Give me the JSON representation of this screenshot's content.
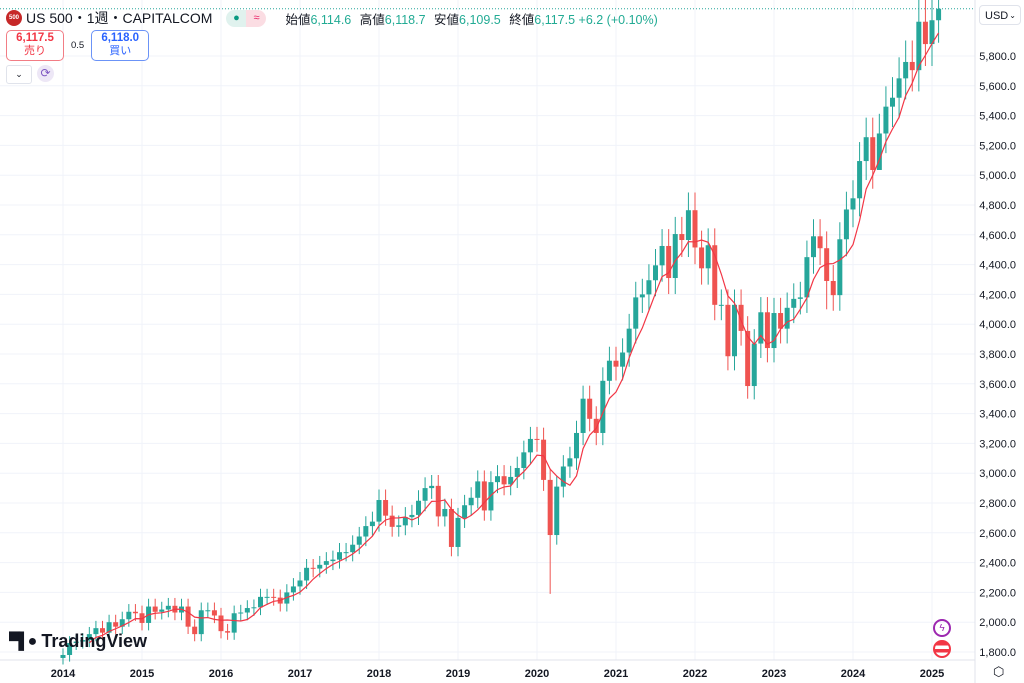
{
  "header": {
    "symbol_badge": "500",
    "title": "US 500・1週・CAPITALCOM",
    "status_open": "●",
    "status_delayed": "≈",
    "ohlc": [
      {
        "k": "始値",
        "v": "6,114.6"
      },
      {
        "k": "高値",
        "v": "6,118.7"
      },
      {
        "k": "安値",
        "v": "6,109.5"
      },
      {
        "k": "終値",
        "v": "6,117.5"
      }
    ],
    "change": "+6.2 (+0.10%)"
  },
  "trade": {
    "sell_price": "6,117.5",
    "sell_label": "売り",
    "spread": "0.5",
    "buy_price": "6,118.0",
    "buy_label": "買い"
  },
  "currency": "USD",
  "logo": "TradingView",
  "icons": {
    "events": "lightning-icon",
    "country": "us-flag-icon",
    "settings": "gear-icon"
  },
  "colors": {
    "up": "#26a69a",
    "down": "#ef5350",
    "ma": "#f23645",
    "grid": "#f0f3fa"
  },
  "chart_data": {
    "type": "candlestick",
    "interval": "monthly approximation of weekly chart",
    "start": "2014-01",
    "closes": [
      1780,
      1860,
      1870,
      1880,
      1920,
      1960,
      1930,
      2000,
      1970,
      2020,
      2070,
      2060,
      1995,
      2105,
      2070,
      2085,
      2110,
      2065,
      2105,
      1970,
      1920,
      2080,
      2080,
      2045,
      1940,
      1930,
      2060,
      2065,
      2095,
      2100,
      2170,
      2170,
      2165,
      2125,
      2200,
      2240,
      2280,
      2365,
      2360,
      2385,
      2410,
      2420,
      2470,
      2470,
      2520,
      2575,
      2645,
      2675,
      2820,
      2715,
      2640,
      2650,
      2705,
      2720,
      2815,
      2900,
      2915,
      2710,
      2760,
      2505,
      2700,
      2785,
      2835,
      2945,
      2750,
      2940,
      2980,
      2925,
      2975,
      3035,
      3140,
      3230,
      3225,
      2955,
      2585,
      2910,
      3045,
      3100,
      3270,
      3500,
      3365,
      3270,
      3620,
      3755,
      3715,
      3810,
      3970,
      4180,
      4200,
      4295,
      4395,
      4525,
      4310,
      4605,
      4565,
      4765,
      4515,
      4375,
      4530,
      4130,
      4130,
      3785,
      4130,
      3955,
      3585,
      3870,
      4080,
      3840,
      4075,
      3970,
      4110,
      4170,
      4180,
      4450,
      4590,
      4510,
      4290,
      4195,
      4570,
      4770,
      4845,
      5095,
      5255,
      5035,
      5280,
      5460,
      5520,
      5650,
      5760,
      5705,
      6030,
      5880,
      6040,
      6117
    ],
    "low_overrides": {
      "74": 2190,
      "104": 3500,
      "116": 4100,
      "124": 5100
    },
    "ma_period": 5,
    "last_price": 6117.5,
    "y_ticks": [
      "1,800.0",
      "2,000.0",
      "2,200.0",
      "2,400.0",
      "2,600.0",
      "2,800.0",
      "3,000.0",
      "3,200.0",
      "3,400.0",
      "3,600.0",
      "3,800.0",
      "4,000.0",
      "4,200.0",
      "4,400.0",
      "4,600.0",
      "4,800.0",
      "5,000.0",
      "5,200.0",
      "5,400.0",
      "5,600.0",
      "5,800.0"
    ],
    "y_values": [
      1800,
      2000,
      2200,
      2400,
      2600,
      2800,
      3000,
      3200,
      3400,
      3600,
      3800,
      4000,
      4200,
      4400,
      4600,
      4800,
      5000,
      5200,
      5400,
      5600,
      5800
    ],
    "x_ticks": [
      "2014",
      "2015",
      "2016",
      "2017",
      "2018",
      "2019",
      "2020",
      "2021",
      "2022",
      "2023",
      "2024",
      "2025"
    ]
  }
}
